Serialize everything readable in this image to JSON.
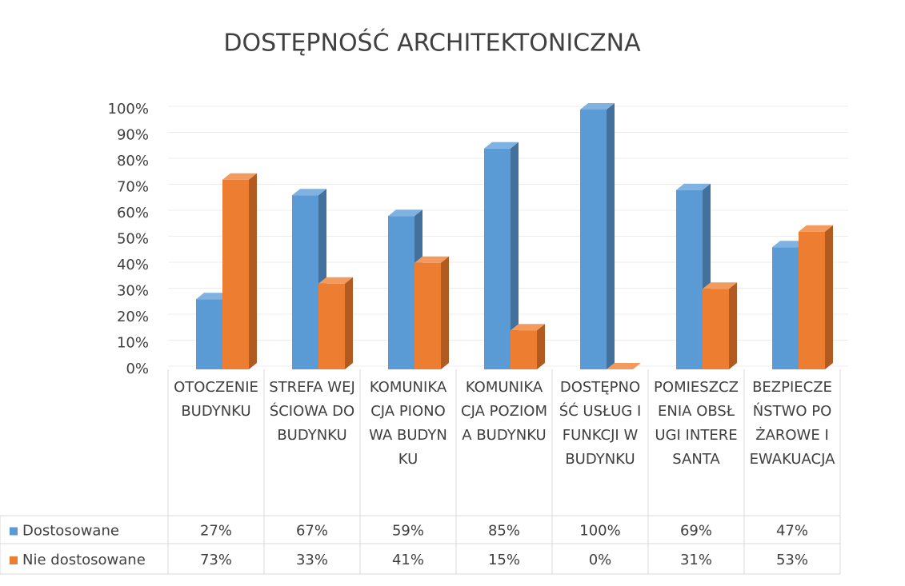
{
  "chart_data": {
    "type": "bar3d",
    "title": "DOSTĘPNOŚĆ ARCHITEKTONICZNA",
    "categories": [
      "OTOCZENIE BUDYNKU",
      "STREFA WEJŚCIOWA DO BUDYNKU",
      "KOMUNIKACJA PIONOWA BUDYNKU",
      "KOMUNIKACJA POZIOMA BUDYNKU",
      "DOSTĘPNOŚĆ USŁUG I FUNKCJI W BUDYNKU",
      "POMIESZCZENIA OBSŁUGI INTERESANTA",
      "BEZPIECZEŃSTWO POŻAROWE I EWAKUACJA"
    ],
    "series": [
      {
        "name": "Dostosowane",
        "color": "#5b9bd5",
        "side": "#41719c",
        "top": "#7fb2e0",
        "values": [
          27,
          67,
          59,
          85,
          100,
          69,
          47
        ],
        "value_labels": [
          "27%",
          "67%",
          "59%",
          "85%",
          "100%",
          "69%",
          "47%"
        ]
      },
      {
        "name": "Nie dostosowane",
        "color": "#ed7d31",
        "side": "#b25b20",
        "top": "#f39a5e",
        "values": [
          73,
          33,
          41,
          15,
          0,
          31,
          53
        ],
        "value_labels": [
          "73%",
          "33%",
          "41%",
          "15%",
          "0%",
          "31%",
          "53%"
        ]
      }
    ],
    "ylim": [
      0,
      100
    ],
    "yticks": [
      {
        "value": 0,
        "label": "0%"
      },
      {
        "value": 10,
        "label": "10%"
      },
      {
        "value": 20,
        "label": "20%"
      },
      {
        "value": 30,
        "label": "30%"
      },
      {
        "value": 40,
        "label": "40%"
      },
      {
        "value": 50,
        "label": "50%"
      },
      {
        "value": 60,
        "label": "60%"
      },
      {
        "value": 70,
        "label": "70%"
      },
      {
        "value": 80,
        "label": "80%"
      },
      {
        "value": 90,
        "label": "90%"
      },
      {
        "value": 100,
        "label": "100%"
      }
    ],
    "grid": true
  }
}
